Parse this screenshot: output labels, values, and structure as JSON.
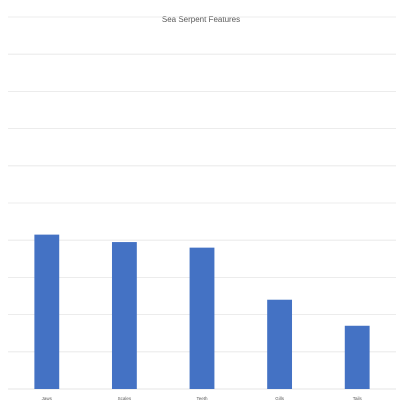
{
  "chart_data": {
    "type": "bar",
    "title": "Sea Serpent Features",
    "categories": [
      "Jaws",
      "Scales",
      "Teeth",
      "Gills",
      "Tails"
    ],
    "values": [
      83,
      79,
      76,
      48,
      34
    ],
    "ylim": [
      0,
      200
    ],
    "ytick_step": 20,
    "grid": true,
    "colors": {
      "bar": "#4472c4",
      "grid": "#e6e6e6",
      "text": "#595959"
    }
  }
}
